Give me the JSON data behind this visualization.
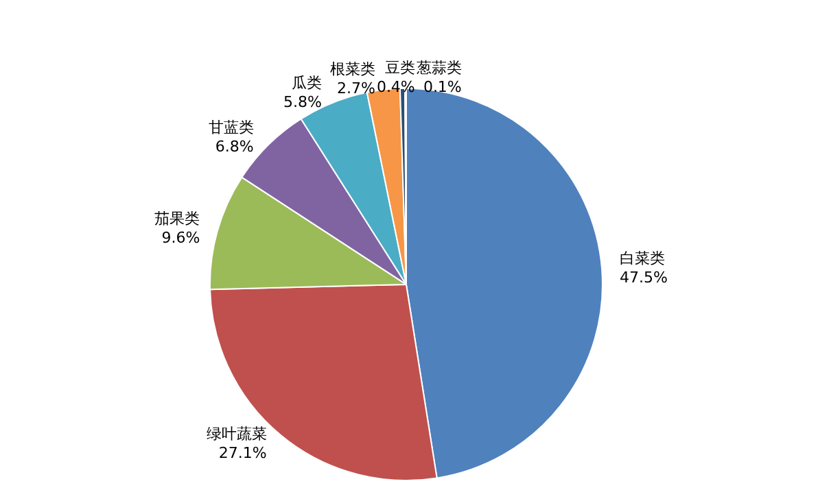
{
  "chart_data": {
    "type": "pie",
    "categories": [
      "白菜类",
      "绿叶蔬菜",
      "茄果类",
      "甘蓝类",
      "瓜类",
      "根菜类",
      "豆类",
      "葱蒜类"
    ],
    "values": [
      47.5,
      27.1,
      9.6,
      6.8,
      5.8,
      2.7,
      0.4,
      0.1
    ],
    "value_labels": [
      "47.5%",
      "27.1%",
      "9.6%",
      "6.8%",
      "5.8%",
      "2.7%",
      "0.4%",
      "0.1%"
    ],
    "colors": [
      "#4f81bd",
      "#c0504d",
      "#9bbb59",
      "#8064a2",
      "#4bacc6",
      "#f79646",
      "#2c4d75",
      "#772c2a"
    ],
    "legend": false
  }
}
